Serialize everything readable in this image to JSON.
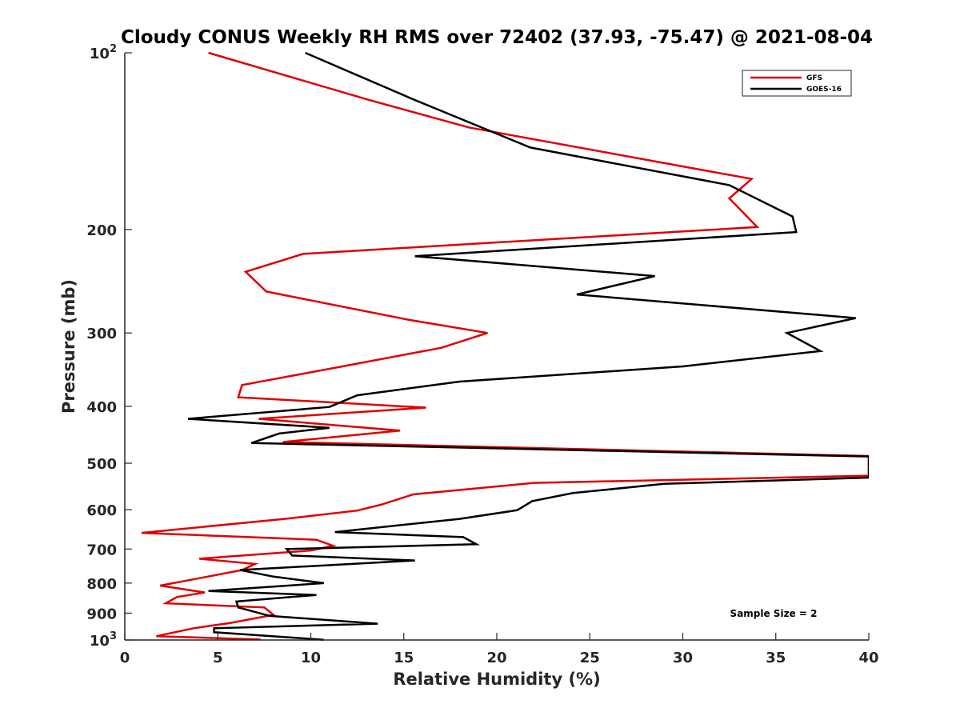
{
  "chart_data": {
    "type": "line",
    "title": "Cloudy CONUS Weekly RH RMS over 72402 (37.93, -75.47) @ 2021-08-04",
    "xlabel": "Relative Humidity (%)",
    "ylabel": "Pressure (mb)",
    "xlim": [
      0,
      40
    ],
    "ylim": [
      100,
      1000
    ],
    "y_scale": "log",
    "y_reversed": true,
    "grid": false,
    "legend_position": "top-right",
    "x_ticks": [
      "0",
      "5",
      "10",
      "15",
      "20",
      "25",
      "30",
      "35",
      "40"
    ],
    "y_ticks": [
      {
        "value": 100,
        "base": "10",
        "exp": "2"
      },
      {
        "value": 200,
        "label": "200"
      },
      {
        "value": 300,
        "label": "300"
      },
      {
        "value": 400,
        "label": "400"
      },
      {
        "value": 500,
        "label": "500"
      },
      {
        "value": 600,
        "label": "600"
      },
      {
        "value": 700,
        "label": "700"
      },
      {
        "value": 800,
        "label": "800"
      },
      {
        "value": 900,
        "label": "900"
      },
      {
        "value": 1000,
        "base": "10",
        "exp": "3"
      }
    ],
    "annotation": "Sample Size = 2",
    "series": [
      {
        "name": "GFS",
        "color": "#e00000",
        "points": [
          [
            4.5,
            100
          ],
          [
            13.0,
            120
          ],
          [
            18.5,
            134
          ],
          [
            33.7,
            164
          ],
          [
            32.5,
            177
          ],
          [
            34.0,
            198
          ],
          [
            9.6,
            220
          ],
          [
            6.5,
            236
          ],
          [
            7.6,
            255
          ],
          [
            15.3,
            285
          ],
          [
            19.5,
            300
          ],
          [
            17.0,
            318
          ],
          [
            11.5,
            343
          ],
          [
            6.3,
            368
          ],
          [
            6.1,
            386
          ],
          [
            16.2,
            402
          ],
          [
            7.2,
            420
          ],
          [
            14.8,
            440
          ],
          [
            8.5,
            460
          ],
          [
            40,
            486
          ],
          [
            40,
            525
          ],
          [
            22.0,
            540
          ],
          [
            15.5,
            565
          ],
          [
            13.8,
            588
          ],
          [
            12.5,
            602
          ],
          [
            8.6,
            622
          ],
          [
            0.9,
            657
          ],
          [
            10.3,
            675
          ],
          [
            11.2,
            691
          ],
          [
            10.0,
            704
          ],
          [
            4.0,
            727
          ],
          [
            7.0,
            742
          ],
          [
            6.3,
            760
          ],
          [
            4.0,
            785
          ],
          [
            1.9,
            808
          ],
          [
            4.3,
            830
          ],
          [
            2.8,
            845
          ],
          [
            2.2,
            866
          ],
          [
            7.5,
            880
          ],
          [
            8.0,
            906
          ],
          [
            5.7,
            935
          ],
          [
            3.7,
            955
          ],
          [
            1.7,
            985
          ],
          [
            7.3,
            998
          ]
        ]
      },
      {
        "name": "GOES-16",
        "color": "#000000",
        "points": [
          [
            9.7,
            100
          ],
          [
            15.5,
            120
          ],
          [
            21.8,
            145
          ],
          [
            32.5,
            168
          ],
          [
            35.9,
            190
          ],
          [
            36.1,
            202
          ],
          [
            15.6,
            222
          ],
          [
            28.5,
            240
          ],
          [
            24.3,
            258
          ],
          [
            39.3,
            283
          ],
          [
            35.6,
            300
          ],
          [
            37.4,
            322
          ],
          [
            30.0,
            342
          ],
          [
            18.0,
            363
          ],
          [
            12.5,
            383
          ],
          [
            11.0,
            401
          ],
          [
            3.4,
            420
          ],
          [
            11.0,
            435
          ],
          [
            8.3,
            445
          ],
          [
            6.8,
            462
          ],
          [
            40,
            487
          ],
          [
            40,
            529
          ],
          [
            29.0,
            542
          ],
          [
            24.1,
            562
          ],
          [
            21.9,
            580
          ],
          [
            21.1,
            601
          ],
          [
            18.0,
            622
          ],
          [
            11.3,
            655
          ],
          [
            18.2,
            668
          ],
          [
            18.9,
            687
          ],
          [
            8.7,
            700
          ],
          [
            9.0,
            718
          ],
          [
            15.6,
            732
          ],
          [
            6.2,
            760
          ],
          [
            8.0,
            780
          ],
          [
            10.7,
            800
          ],
          [
            4.5,
            825
          ],
          [
            10.3,
            838
          ],
          [
            6.0,
            860
          ],
          [
            6.1,
            880
          ],
          [
            7.8,
            910
          ],
          [
            13.6,
            938
          ],
          [
            4.8,
            955
          ],
          [
            4.8,
            970
          ],
          [
            10.7,
            999
          ]
        ]
      }
    ]
  }
}
